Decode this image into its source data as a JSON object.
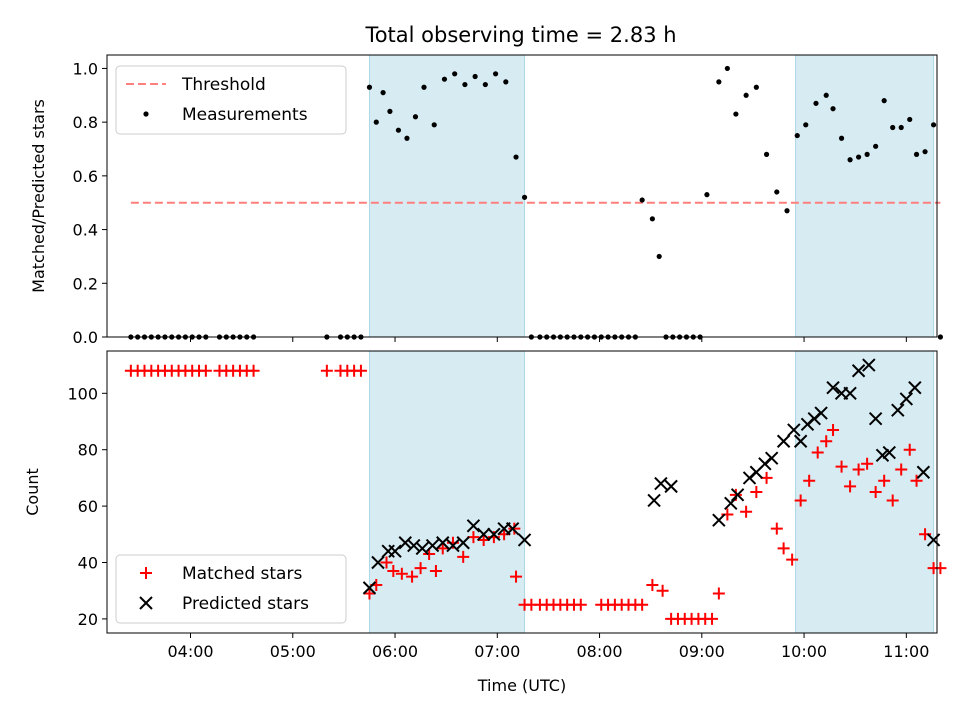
{
  "chart_data": [
    {
      "type": "scatter",
      "title": "Total observing time = 2.83 h",
      "xlabel": "",
      "ylabel": "Matched/Predicted stars",
      "ylim": [
        0,
        1.05
      ],
      "yticks": [
        "0.0",
        "0.2",
        "0.4",
        "0.6",
        "0.8",
        "1.0"
      ],
      "xticks": [
        "04:00",
        "05:00",
        "06:00",
        "07:00",
        "08:00",
        "09:00",
        "10:00",
        "11:00"
      ],
      "shaded_regions": [
        [
          "05:45",
          "07:16"
        ],
        [
          "09:55",
          "11:16"
        ]
      ],
      "series": [
        {
          "name": "Threshold",
          "style": "dashed-line",
          "color": "#ff7f7f",
          "x": [
            "03:25",
            "11:20"
          ],
          "y": [
            0.5,
            0.5
          ]
        },
        {
          "name": "Measurements",
          "style": "dot",
          "color": "#000000",
          "x": [
            "03:25",
            "03:29",
            "03:33",
            "03:37",
            "03:41",
            "03:45",
            "03:49",
            "03:53",
            "03:57",
            "04:01",
            "04:05",
            "04:09",
            "04:17",
            "04:21",
            "04:25",
            "04:29",
            "04:33",
            "04:37",
            "05:20",
            "05:28",
            "05:32",
            "05:36",
            "05:40",
            "05:45",
            "05:49",
            "05:53",
            "05:57",
            "06:02",
            "06:07",
            "06:12",
            "06:17",
            "06:23",
            "06:29",
            "06:35",
            "06:41",
            "06:47",
            "06:53",
            "06:59",
            "07:05",
            "07:11",
            "07:16",
            "07:20",
            "07:25",
            "07:29",
            "07:33",
            "07:37",
            "07:41",
            "07:45",
            "07:49",
            "07:53",
            "07:57",
            "08:01",
            "08:05",
            "08:09",
            "08:13",
            "08:17",
            "08:21",
            "08:25",
            "08:31",
            "08:35",
            "08:39",
            "08:43",
            "08:47",
            "08:51",
            "08:55",
            "08:59",
            "09:03",
            "09:10",
            "09:15",
            "09:20",
            "09:26",
            "09:32",
            "09:38",
            "09:44",
            "09:50",
            "09:56",
            "10:01",
            "10:07",
            "10:13",
            "10:17",
            "10:22",
            "10:27",
            "10:32",
            "10:37",
            "10:42",
            "10:47",
            "10:52",
            "10:57",
            "11:02",
            "11:06",
            "11:11",
            "11:16",
            "11:20"
          ],
          "y": [
            0,
            0,
            0,
            0,
            0,
            0,
            0,
            0,
            0,
            0,
            0,
            0,
            0,
            0,
            0,
            0,
            0,
            0,
            0,
            0,
            0,
            0,
            0,
            0.93,
            0.8,
            0.91,
            0.84,
            0.77,
            0.74,
            0.82,
            0.93,
            0.79,
            0.96,
            0.98,
            0.94,
            0.97,
            0.94,
            0.98,
            0.95,
            0.67,
            0.52,
            0,
            0,
            0,
            0,
            0,
            0,
            0,
            0,
            0,
            0,
            0,
            0,
            0,
            0,
            0,
            0,
            0.51,
            0.44,
            0.3,
            0,
            0,
            0,
            0,
            0,
            0,
            0.53,
            0.95,
            1.0,
            0.83,
            0.9,
            0.93,
            0.68,
            0.54,
            0.47,
            0.75,
            0.79,
            0.87,
            0.9,
            0.85,
            0.74,
            0.66,
            0.67,
            0.68,
            0.71,
            0.88,
            0.78,
            0.78,
            0.81,
            0.68,
            0.69,
            0.79,
            0
          ]
        }
      ]
    },
    {
      "type": "scatter",
      "title": "",
      "xlabel": "Time (UTC)",
      "ylabel": "Count",
      "ylim": [
        15,
        115
      ],
      "yticks": [
        "20",
        "40",
        "60",
        "80",
        "100"
      ],
      "xticks": [
        "04:00",
        "05:00",
        "06:00",
        "07:00",
        "08:00",
        "09:00",
        "10:00",
        "11:00"
      ],
      "shaded_regions": [
        [
          "05:45",
          "07:16"
        ],
        [
          "09:55",
          "11:16"
        ]
      ],
      "series": [
        {
          "name": "Matched stars",
          "marker": "+",
          "color": "#ff0000",
          "x": [
            "03:25",
            "03:29",
            "03:33",
            "03:37",
            "03:41",
            "03:45",
            "03:49",
            "03:53",
            "03:57",
            "04:01",
            "04:05",
            "04:09",
            "04:17",
            "04:21",
            "04:25",
            "04:29",
            "04:33",
            "04:37",
            "05:20",
            "05:28",
            "05:32",
            "05:36",
            "05:40",
            "05:45",
            "05:49",
            "05:55",
            "05:59",
            "06:04",
            "06:10",
            "06:15",
            "06:20",
            "06:24",
            "06:28",
            "06:34",
            "06:40",
            "06:46",
            "06:52",
            "06:58",
            "07:04",
            "07:10",
            "07:11",
            "07:16",
            "07:20",
            "07:25",
            "07:29",
            "07:33",
            "07:37",
            "07:41",
            "07:45",
            "07:49",
            "08:01",
            "08:05",
            "08:09",
            "08:13",
            "08:17",
            "08:21",
            "08:25",
            "08:31",
            "08:37",
            "08:42",
            "08:46",
            "08:50",
            "08:54",
            "08:58",
            "09:02",
            "09:06",
            "09:10",
            "09:15",
            "09:20",
            "09:26",
            "09:32",
            "09:38",
            "09:44",
            "09:48",
            "09:53",
            "09:58",
            "10:03",
            "10:08",
            "10:13",
            "10:17",
            "10:22",
            "10:27",
            "10:32",
            "10:37",
            "10:42",
            "10:47",
            "10:52",
            "10:57",
            "11:02",
            "11:06",
            "11:11",
            "11:16",
            "11:20"
          ],
          "y": [
            108,
            108,
            108,
            108,
            108,
            108,
            108,
            108,
            108,
            108,
            108,
            108,
            108,
            108,
            108,
            108,
            108,
            108,
            108,
            108,
            108,
            108,
            108,
            29,
            32,
            40,
            37,
            36,
            35,
            38,
            43,
            37,
            45,
            47,
            42,
            49,
            48,
            49,
            50,
            52,
            35,
            25,
            25,
            25,
            25,
            25,
            25,
            25,
            25,
            25,
            25,
            25,
            25,
            25,
            25,
            25,
            25,
            32,
            30,
            20,
            20,
            20,
            20,
            20,
            20,
            20,
            29,
            57,
            64,
            58,
            65,
            70,
            52,
            45,
            41,
            62,
            69,
            79,
            83,
            87,
            74,
            67,
            73,
            75,
            65,
            69,
            62,
            73,
            80,
            69,
            50,
            38,
            38
          ]
        },
        {
          "name": "Predicted stars",
          "marker": "x",
          "color": "#000000",
          "x": [
            "05:45",
            "05:50",
            "05:56",
            "06:00",
            "06:06",
            "06:11",
            "06:16",
            "06:22",
            "06:28",
            "06:34",
            "06:40",
            "06:46",
            "06:52",
            "06:58",
            "07:04",
            "07:09",
            "07:16",
            "08:32",
            "08:36",
            "08:42",
            "09:10",
            "09:17",
            "09:21",
            "09:28",
            "09:32",
            "09:37",
            "09:41",
            "09:48",
            "09:54",
            "09:58",
            "10:02",
            "10:06",
            "10:10",
            "10:17",
            "10:22",
            "10:27",
            "10:32",
            "10:38",
            "10:42",
            "10:46",
            "10:50",
            "10:55",
            "11:00",
            "11:05",
            "11:10",
            "11:16"
          ],
          "y": [
            31,
            40,
            44,
            44,
            47,
            46,
            45,
            46,
            47,
            46,
            47,
            53,
            50,
            50,
            52,
            52,
            48,
            62,
            68,
            67,
            55,
            61,
            64,
            70,
            72,
            75,
            77,
            83,
            87,
            83,
            89,
            91,
            93,
            102,
            100,
            100,
            108,
            110,
            91,
            78,
            79,
            94,
            98,
            102,
            72,
            48
          ]
        }
      ]
    }
  ]
}
